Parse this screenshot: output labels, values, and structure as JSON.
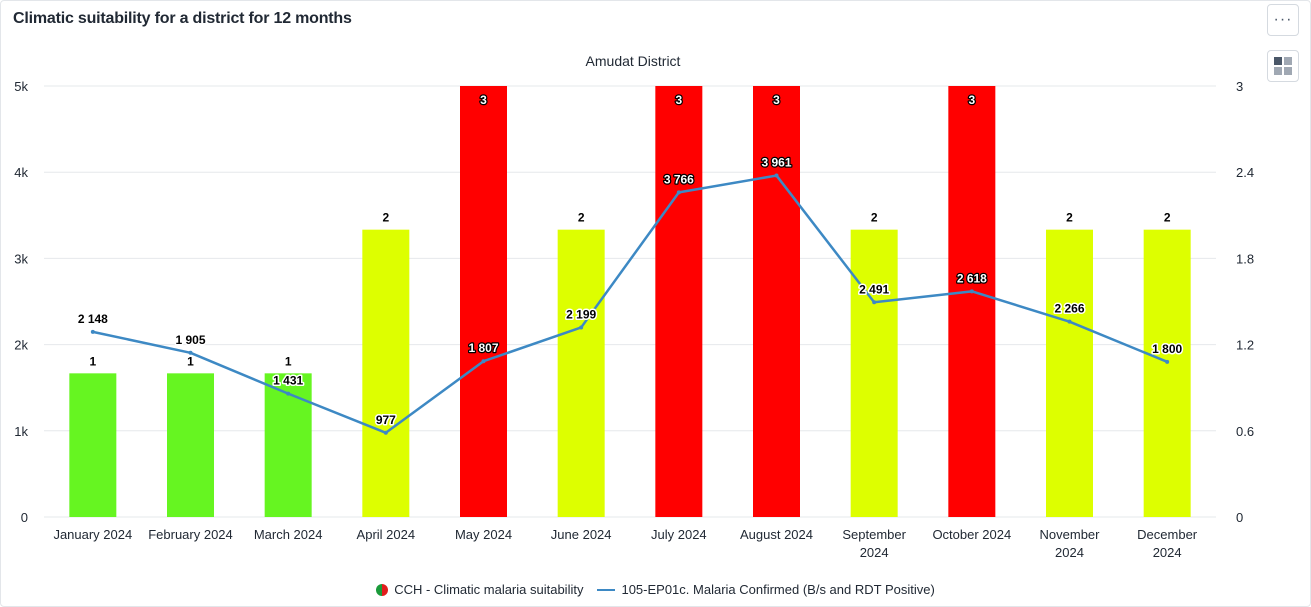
{
  "header": {
    "title": "Climatic suitability for a district for 12 months",
    "more_icon": "ellipsis-icon",
    "layout_icon": "grid-icon"
  },
  "chart_data": {
    "type": "bar",
    "title": "Amudat District",
    "categories": [
      [
        "January 2024"
      ],
      [
        "February 2024"
      ],
      [
        "March 2024"
      ],
      [
        "April 2024"
      ],
      [
        "May 2024"
      ],
      [
        "June 2024"
      ],
      [
        "July 2024"
      ],
      [
        "August 2024"
      ],
      [
        "September",
        "2024"
      ],
      [
        "October 2024"
      ],
      [
        "November",
        "2024"
      ],
      [
        "December",
        "2024"
      ]
    ],
    "left_axis": {
      "ticks": [
        "0",
        "1k",
        "2k",
        "3k",
        "4k",
        "5k"
      ],
      "ylim": [
        0,
        5000
      ]
    },
    "right_axis": {
      "ticks": [
        "0",
        "0.6",
        "1.2",
        "1.8",
        "2.4",
        "3"
      ],
      "ylim": [
        0,
        3
      ]
    },
    "series": [
      {
        "name": "CCH - Climatic malaria suitability",
        "type": "bar",
        "axis": "right",
        "values": [
          1,
          1,
          1,
          2,
          3,
          2,
          3,
          3,
          2,
          3,
          2,
          2
        ],
        "colors": {
          "1": "#66f521",
          "2": "#ddff00",
          "3": "#ff0000"
        }
      },
      {
        "name": "105-EP01c. Malaria Confirmed (B/s and RDT Positive)",
        "type": "line",
        "axis": "left",
        "color": "#3d89c4",
        "values": [
          2148,
          1905,
          1431,
          977,
          1807,
          2199,
          3766,
          3961,
          2491,
          2618,
          2266,
          1800
        ],
        "labels": [
          "2 148",
          "1 905",
          "1 431",
          "977",
          "1 807",
          "2 199",
          "3 766",
          "3 961",
          "2 491",
          "2 618",
          "2 266",
          "1 800"
        ]
      }
    ],
    "grid": true,
    "legend_position": "bottom"
  }
}
